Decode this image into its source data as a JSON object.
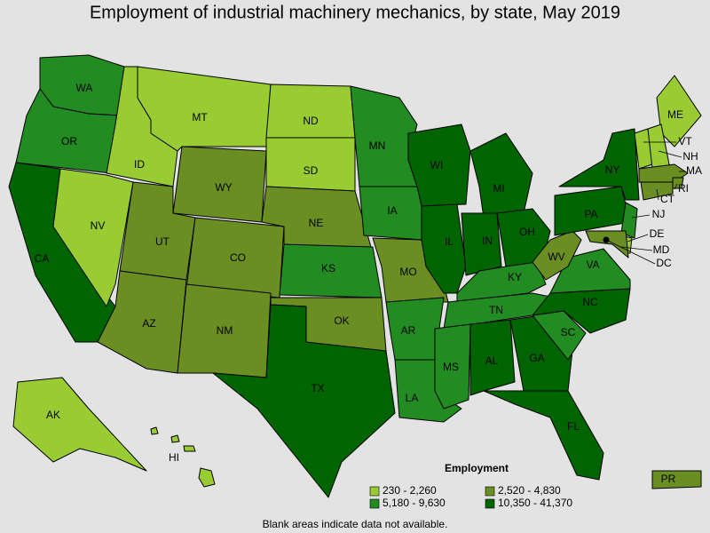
{
  "title": "Employment of industrial machinery mechanics, by state, May 2019",
  "note": "Blank areas indicate data not available.",
  "legend": {
    "title": "Employment",
    "entries": [
      {
        "label": "230 - 2,260",
        "color": "#99cc33"
      },
      {
        "label": "2,520 - 4,830",
        "color": "#6b8e23"
      },
      {
        "label": "5,180 - 9,630",
        "color": "#228b22"
      },
      {
        "label": "10,350 - 41,370",
        "color": "#006400"
      }
    ]
  },
  "states": [
    {
      "label": "WA",
      "bin": 2
    },
    {
      "label": "OR",
      "bin": 2
    },
    {
      "label": "CA",
      "bin": 3
    },
    {
      "label": "ID",
      "bin": 0
    },
    {
      "label": "NV",
      "bin": 0
    },
    {
      "label": "MT",
      "bin": 0
    },
    {
      "label": "WY",
      "bin": 1
    },
    {
      "label": "UT",
      "bin": 1
    },
    {
      "label": "CO",
      "bin": 1
    },
    {
      "label": "AZ",
      "bin": 1
    },
    {
      "label": "NM",
      "bin": 1
    },
    {
      "label": "ND",
      "bin": 0
    },
    {
      "label": "SD",
      "bin": 0
    },
    {
      "label": "NE",
      "bin": 1
    },
    {
      "label": "KS",
      "bin": 2
    },
    {
      "label": "OK",
      "bin": 1
    },
    {
      "label": "TX",
      "bin": 3
    },
    {
      "label": "MN",
      "bin": 2
    },
    {
      "label": "IA",
      "bin": 2
    },
    {
      "label": "MO",
      "bin": 1
    },
    {
      "label": "AR",
      "bin": 2
    },
    {
      "label": "LA",
      "bin": 2
    },
    {
      "label": "WI",
      "bin": 3
    },
    {
      "label": "IL",
      "bin": 3
    },
    {
      "label": "MI",
      "bin": 3
    },
    {
      "label": "IN",
      "bin": 3
    },
    {
      "label": "OH",
      "bin": 3
    },
    {
      "label": "KY",
      "bin": 2
    },
    {
      "label": "TN",
      "bin": 2
    },
    {
      "label": "MS",
      "bin": 2
    },
    {
      "label": "AL",
      "bin": 3
    },
    {
      "label": "GA",
      "bin": 3
    },
    {
      "label": "FL",
      "bin": 3
    },
    {
      "label": "SC",
      "bin": 2
    },
    {
      "label": "NC",
      "bin": 3
    },
    {
      "label": "VA",
      "bin": 2
    },
    {
      "label": "WV",
      "bin": 1
    },
    {
      "label": "PA",
      "bin": 3
    },
    {
      "label": "NY",
      "bin": 3
    },
    {
      "label": "ME",
      "bin": 0
    },
    {
      "label": "VT",
      "bin": 0
    },
    {
      "label": "NH",
      "bin": 0
    },
    {
      "label": "MA",
      "bin": 1
    },
    {
      "label": "RI",
      "bin": 1
    },
    {
      "label": "CT",
      "bin": 1
    },
    {
      "label": "NJ",
      "bin": 2
    },
    {
      "label": "DE",
      "bin": 0
    },
    {
      "label": "MD",
      "bin": 1
    },
    {
      "label": "DC",
      "bin": null
    },
    {
      "label": "AK",
      "bin": 0
    },
    {
      "label": "HI",
      "bin": 0
    },
    {
      "label": "PR",
      "bin": 1
    }
  ]
}
